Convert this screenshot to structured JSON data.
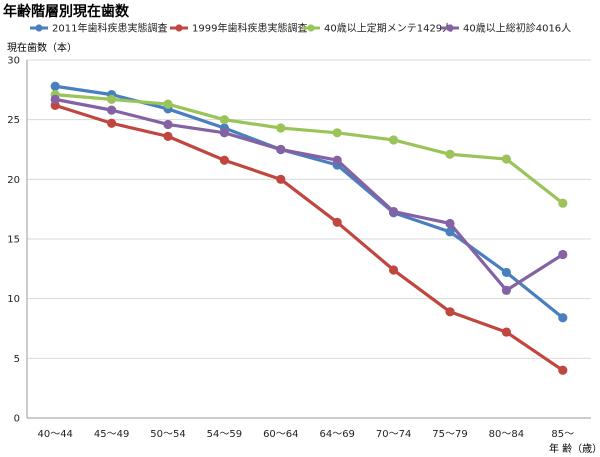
{
  "title": "年齢階層別現在歯数",
  "chart_data": {
    "type": "line",
    "title": "年齢階層別現在歯数",
    "ylabel": "現在歯数（本）",
    "xlabel": "年 齢（歳）",
    "ylim": [
      0,
      30
    ],
    "yticks": [
      0,
      5,
      10,
      15,
      20,
      25,
      30
    ],
    "grid": true,
    "legend_position": "top",
    "categories": [
      "40〜44",
      "45〜49",
      "50〜54",
      "54〜59",
      "60〜64",
      "64〜69",
      "70〜74",
      "75〜79",
      "80〜84",
      "85〜"
    ],
    "series": [
      {
        "name": "2011年歯科疾患実態調査",
        "color": "#4a7fbf",
        "values": [
          27.8,
          27.1,
          25.9,
          24.3,
          22.5,
          21.2,
          17.2,
          15.6,
          12.2,
          8.4
        ]
      },
      {
        "name": "1999年歯科疾患実態調査",
        "color": "#c0473f",
        "values": [
          26.2,
          24.7,
          23.6,
          21.6,
          20.0,
          16.4,
          12.4,
          8.9,
          7.2,
          4.0
        ]
      },
      {
        "name": "40歳以上定期メンテ1429人",
        "color": "#9ac45a",
        "values": [
          27.1,
          26.7,
          26.3,
          25.0,
          24.3,
          23.9,
          23.3,
          22.1,
          21.7,
          18.0
        ]
      },
      {
        "name": "40歳以上総初診4016人",
        "color": "#8462a3",
        "values": [
          26.7,
          25.8,
          24.6,
          23.9,
          22.5,
          21.6,
          17.3,
          16.3,
          10.7,
          13.7
        ]
      }
    ]
  }
}
